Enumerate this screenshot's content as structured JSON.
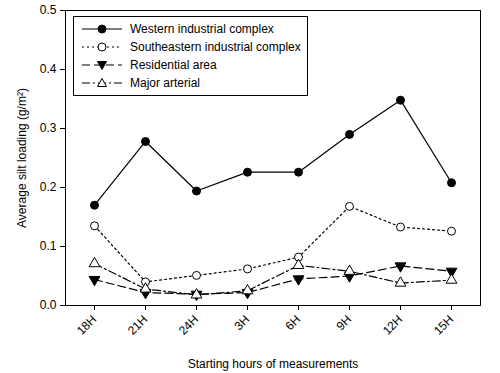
{
  "chart_data": {
    "type": "line",
    "x_label": "Starting hours of measurements",
    "y_label": "Average silt loading (g/m²)",
    "categories": [
      "18H",
      "21H",
      "24H",
      "3H",
      "6H",
      "9H",
      "12H",
      "15H"
    ],
    "ylim": [
      0,
      0.5
    ],
    "yticks": [
      {
        "value": 0,
        "label": "0.0"
      },
      0.1,
      0.2,
      0.3,
      0.4,
      0.5
    ],
    "legend": "upper left",
    "series": [
      {
        "name": "Western industrial complex",
        "color": "#000000",
        "marker": "filled_circle",
        "line_style": "solid",
        "values": [
          0.17,
          0.278,
          0.194,
          0.226,
          0.226,
          0.29,
          0.348,
          0.208
        ]
      },
      {
        "name": "Southeastern industrial complex",
        "color": "#000000",
        "marker": "open_circle",
        "line_style": "dotted",
        "values": [
          0.135,
          0.04,
          0.051,
          0.062,
          0.082,
          0.168,
          0.133,
          0.126
        ]
      },
      {
        "name": "Residential area",
        "color": "#000000",
        "marker": "filled_triangle_down",
        "line_style": "dashed",
        "values": [
          0.044,
          0.022,
          0.019,
          0.022,
          0.045,
          0.05,
          0.067,
          0.058
        ]
      },
      {
        "name": "Major arterial",
        "color": "#000000",
        "marker": "open_triangle_up",
        "line_style": "dashdot",
        "values": [
          0.071,
          0.028,
          0.018,
          0.025,
          0.068,
          0.058,
          0.038,
          0.043
        ]
      }
    ]
  }
}
